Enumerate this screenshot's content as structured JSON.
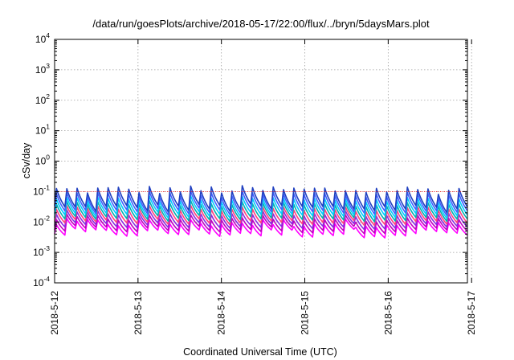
{
  "chart_data": {
    "type": "line",
    "title": "/data/run/goesPlots/archive/2018-05-17/22:00/flux/../bryn/5daysMars.plot",
    "xlabel": "Coordinated Universal Time (UTC)",
    "ylabel": "cSv/day",
    "y_scale": "log",
    "ylim": [
      0.0001,
      10000
    ],
    "y_ticks": [
      {
        "base": "10",
        "exp": "-4",
        "value": 0.0001
      },
      {
        "base": "10",
        "exp": "-3",
        "value": 0.001
      },
      {
        "base": "10",
        "exp": "-2",
        "value": 0.01
      },
      {
        "base": "10",
        "exp": "-1",
        "value": 0.1
      },
      {
        "base": "10",
        "exp": "0",
        "value": 1
      },
      {
        "base": "10",
        "exp": "1",
        "value": 10
      },
      {
        "base": "10",
        "exp": "2",
        "value": 100
      },
      {
        "base": "10",
        "exp": "3",
        "value": 1000
      },
      {
        "base": "10",
        "exp": "4",
        "value": 10000
      }
    ],
    "x_ticks": [
      "2018-5-12",
      "2018-5-13",
      "2018-5-14",
      "2018-5-15",
      "2018-5-16",
      "2018-5-17"
    ],
    "x_range_days": [
      0,
      4.95
    ],
    "grid": true,
    "threshold": {
      "value": 0.1,
      "color": "#ff0000"
    },
    "series_pattern": {
      "peaks_per_day": 8,
      "colors": [
        "#ff00ff",
        "#c000c0",
        "#8a2be2",
        "#ff4080",
        "#00b0b0",
        "#00ccff",
        "#4060ff",
        "#2040c0"
      ],
      "top_peak_range": [
        0.08,
        0.16
      ],
      "bottom_trough_range": [
        0.003,
        0.006
      ]
    }
  }
}
